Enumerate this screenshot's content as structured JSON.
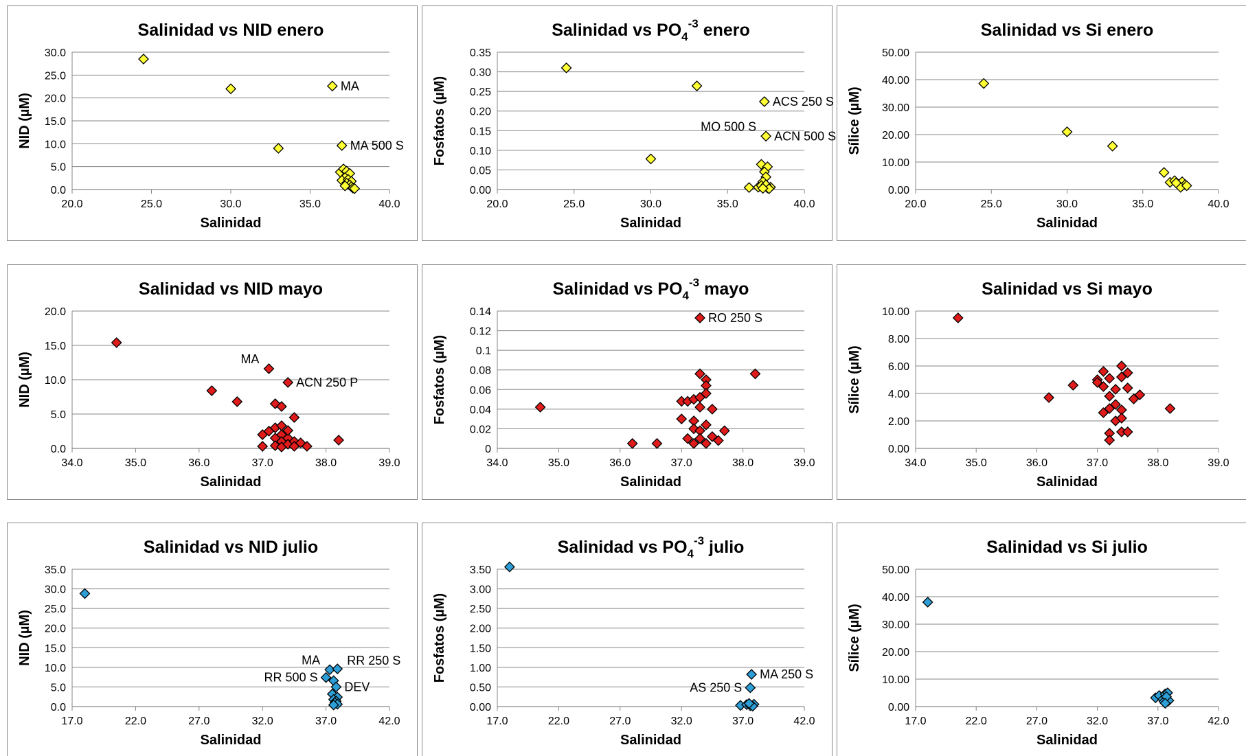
{
  "chart_data": [
    {
      "type": "scatter",
      "title": "Salinidad vs NID enero",
      "xlabel": "Salinidad",
      "ylabel": "NID (µM)",
      "xlim": [
        20.0,
        40.0
      ],
      "ylim": [
        0.0,
        30.0
      ],
      "xticks": [
        "20.0",
        "25.0",
        "30.0",
        "35.0",
        "40.0"
      ],
      "yticks": [
        "0.0",
        "5.0",
        "10.0",
        "15.0",
        "20.0",
        "25.0",
        "30.0"
      ],
      "grid": true,
      "marker_color": "#FFFF33",
      "points": [
        [
          24.5,
          28.5
        ],
        [
          30.0,
          22.0
        ],
        [
          33.0,
          9.0
        ],
        [
          36.4,
          22.6
        ],
        [
          37.0,
          9.6
        ],
        [
          36.9,
          3.8
        ],
        [
          37.1,
          4.5
        ],
        [
          37.3,
          4.0
        ],
        [
          37.5,
          3.5
        ],
        [
          37.2,
          2.6
        ],
        [
          37.0,
          2.0
        ],
        [
          37.4,
          2.2
        ],
        [
          37.6,
          1.8
        ],
        [
          37.3,
          1.4
        ],
        [
          37.5,
          1.0
        ],
        [
          37.6,
          0.6
        ],
        [
          37.7,
          0.3
        ],
        [
          37.2,
          0.8
        ],
        [
          37.8,
          0.2
        ]
      ],
      "annotations": [
        {
          "text": "MA",
          "x": 36.4,
          "y": 22.6,
          "pos": "right"
        },
        {
          "text": "MA 500 S",
          "x": 37.0,
          "y": 9.6,
          "pos": "right"
        }
      ]
    },
    {
      "type": "scatter",
      "title": "Salinidad vs PO4-3 enero",
      "title_main": "Salinidad vs PO",
      "title_sub": "4",
      "title_sup": "-3",
      "title_end": " enero",
      "xlabel": "Salinidad",
      "ylabel": "Fosfatos (µM)",
      "xlim": [
        20.0,
        40.0
      ],
      "ylim": [
        0.0,
        0.35
      ],
      "xticks": [
        "20.0",
        "25.0",
        "30.0",
        "35.0",
        "40.0"
      ],
      "yticks": [
        "0.00",
        "0.05",
        "0.10",
        "0.15",
        "0.20",
        "0.25",
        "0.30",
        "0.35"
      ],
      "grid": true,
      "marker_color": "#FFFF33",
      "points": [
        [
          24.5,
          0.31
        ],
        [
          30.0,
          0.078
        ],
        [
          33.0,
          0.264
        ],
        [
          37.4,
          0.224
        ],
        [
          37.5,
          0.136
        ],
        [
          37.2,
          0.064
        ],
        [
          37.6,
          0.058
        ],
        [
          37.4,
          0.045
        ],
        [
          37.5,
          0.032
        ],
        [
          37.3,
          0.02
        ],
        [
          36.4,
          0.005
        ],
        [
          37.0,
          0.006
        ],
        [
          37.2,
          0.01
        ],
        [
          37.6,
          0.004
        ],
        [
          37.8,
          0.006
        ],
        [
          37.5,
          0.012
        ],
        [
          37.7,
          0.002
        ],
        [
          37.3,
          0.003
        ]
      ],
      "annotations": [
        {
          "text": "ACS 250 S",
          "x": 37.4,
          "y": 0.224,
          "pos": "right"
        },
        {
          "text": "MO 500 S",
          "x": 37.5,
          "y": 0.136,
          "pos": "left-above"
        },
        {
          "text": "ACN 500 S",
          "x": 37.5,
          "y": 0.136,
          "pos": "right"
        }
      ]
    },
    {
      "type": "scatter",
      "title": "Salinidad vs Si enero",
      "xlabel": "Salinidad",
      "ylabel": "Sílice (µM)",
      "xlim": [
        20.0,
        40.0
      ],
      "ylim": [
        0.0,
        50.0
      ],
      "xticks": [
        "20.0",
        "25.0",
        "30.0",
        "35.0",
        "40.0"
      ],
      "yticks": [
        "0.00",
        "10.00",
        "20.00",
        "30.00",
        "40.00",
        "50.00"
      ],
      "grid": true,
      "marker_color": "#FFFF33",
      "points": [
        [
          24.5,
          38.6
        ],
        [
          30.0,
          21.0
        ],
        [
          33.0,
          15.8
        ],
        [
          36.4,
          6.2
        ],
        [
          36.8,
          2.6
        ],
        [
          37.1,
          3.2
        ],
        [
          37.3,
          2.0
        ],
        [
          37.6,
          2.8
        ],
        [
          37.8,
          1.8
        ],
        [
          37.5,
          0.8
        ],
        [
          37.2,
          2.4
        ],
        [
          37.9,
          1.4
        ]
      ],
      "annotations": []
    },
    {
      "type": "scatter",
      "title": "Salinidad vs NID mayo",
      "xlabel": "Salinidad",
      "ylabel": "NID (µM)",
      "xlim": [
        34.0,
        39.0
      ],
      "ylim": [
        0.0,
        20.0
      ],
      "xticks": [
        "34.0",
        "35.0",
        "36.0",
        "37.0",
        "38.0",
        "39.0"
      ],
      "yticks": [
        "0.0",
        "5.0",
        "10.0",
        "15.0",
        "20.0"
      ],
      "grid": true,
      "marker_color": "#E01B1B",
      "points": [
        [
          34.7,
          15.4
        ],
        [
          36.2,
          8.4
        ],
        [
          36.6,
          6.8
        ],
        [
          37.0,
          2.0
        ],
        [
          37.0,
          0.3
        ],
        [
          37.1,
          11.6
        ],
        [
          37.1,
          2.5
        ],
        [
          37.2,
          6.5
        ],
        [
          37.2,
          1.5
        ],
        [
          37.2,
          0.4
        ],
        [
          37.2,
          3.0
        ],
        [
          37.3,
          6.1
        ],
        [
          37.3,
          2.0
        ],
        [
          37.3,
          1.0
        ],
        [
          37.3,
          0.2
        ],
        [
          37.3,
          3.3
        ],
        [
          37.4,
          9.6
        ],
        [
          37.4,
          1.5
        ],
        [
          37.4,
          0.6
        ],
        [
          37.4,
          2.6
        ],
        [
          37.5,
          4.5
        ],
        [
          37.5,
          1.0
        ],
        [
          37.5,
          0.3
        ],
        [
          37.6,
          0.8
        ],
        [
          37.7,
          0.3
        ],
        [
          38.2,
          1.2
        ]
      ],
      "annotations": [
        {
          "text": "MA",
          "x": 37.1,
          "y": 11.6,
          "pos": "left-above"
        },
        {
          "text": "ACN 250 P",
          "x": 37.4,
          "y": 9.6,
          "pos": "right"
        }
      ]
    },
    {
      "type": "scatter",
      "title": "Salinidad vs PO4-3 mayo",
      "title_main": "Salinidad vs PO",
      "title_sub": "4",
      "title_sup": "-3",
      "title_end": " mayo",
      "xlabel": "Salinidad",
      "ylabel": "Fosfatos (µM)",
      "xlim": [
        34.0,
        39.0
      ],
      "ylim": [
        0.0,
        0.14
      ],
      "xticks": [
        "34.0",
        "35.0",
        "36.0",
        "37.0",
        "38.0",
        "39.0"
      ],
      "yticks": [
        "0",
        "0.02",
        "0.04",
        "0.06",
        "0.08",
        "0.1",
        "0.12",
        "0.14"
      ],
      "grid": true,
      "marker_color": "#E01B1B",
      "points": [
        [
          34.7,
          0.042
        ],
        [
          36.2,
          0.005
        ],
        [
          36.6,
          0.005
        ],
        [
          37.0,
          0.048
        ],
        [
          37.0,
          0.03
        ],
        [
          37.1,
          0.048
        ],
        [
          37.1,
          0.01
        ],
        [
          37.2,
          0.05
        ],
        [
          37.2,
          0.028
        ],
        [
          37.2,
          0.02
        ],
        [
          37.2,
          0.005
        ],
        [
          37.3,
          0.133
        ],
        [
          37.3,
          0.076
        ],
        [
          37.3,
          0.052
        ],
        [
          37.3,
          0.042
        ],
        [
          37.3,
          0.018
        ],
        [
          37.3,
          0.01
        ],
        [
          37.4,
          0.07
        ],
        [
          37.4,
          0.064
        ],
        [
          37.4,
          0.056
        ],
        [
          37.4,
          0.024
        ],
        [
          37.4,
          0.005
        ],
        [
          37.5,
          0.04
        ],
        [
          37.5,
          0.012
        ],
        [
          37.6,
          0.008
        ],
        [
          37.7,
          0.018
        ],
        [
          38.2,
          0.076
        ]
      ],
      "annotations": [
        {
          "text": "RO 250 S",
          "x": 37.3,
          "y": 0.133,
          "pos": "right"
        }
      ]
    },
    {
      "type": "scatter",
      "title": "Salinidad vs Si mayo",
      "xlabel": "Salinidad",
      "ylabel": "Sílice (µM)",
      "xlim": [
        34.0,
        39.0
      ],
      "ylim": [
        0.0,
        10.0
      ],
      "xticks": [
        "34.0",
        "35.0",
        "36.0",
        "37.0",
        "38.0",
        "39.0"
      ],
      "yticks": [
        "0.00",
        "2.00",
        "4.00",
        "6.00",
        "8.00",
        "10.00"
      ],
      "grid": true,
      "marker_color": "#E01B1B",
      "points": [
        [
          34.7,
          9.5
        ],
        [
          36.2,
          3.7
        ],
        [
          36.6,
          4.6
        ],
        [
          37.0,
          5.0
        ],
        [
          37.0,
          4.8
        ],
        [
          37.1,
          5.6
        ],
        [
          37.1,
          4.5
        ],
        [
          37.1,
          2.6
        ],
        [
          37.2,
          5.1
        ],
        [
          37.2,
          3.8
        ],
        [
          37.2,
          1.1
        ],
        [
          37.2,
          0.6
        ],
        [
          37.2,
          2.9
        ],
        [
          37.3,
          4.3
        ],
        [
          37.3,
          3.2
        ],
        [
          37.3,
          2.0
        ],
        [
          37.4,
          6.0
        ],
        [
          37.4,
          5.2
        ],
        [
          37.4,
          2.8
        ],
        [
          37.4,
          1.2
        ],
        [
          37.4,
          2.2
        ],
        [
          37.5,
          5.5
        ],
        [
          37.5,
          4.4
        ],
        [
          37.5,
          1.2
        ],
        [
          37.6,
          3.6
        ],
        [
          37.7,
          3.9
        ],
        [
          38.2,
          2.9
        ]
      ],
      "annotations": []
    },
    {
      "type": "scatter",
      "title": "Salinidad vs NID julio",
      "xlabel": "Salinidad",
      "ylabel": "NID (µM)",
      "xlim": [
        17.0,
        42.0
      ],
      "ylim": [
        0.0,
        35.0
      ],
      "xticks": [
        "17.0",
        "22.0",
        "27.0",
        "32.0",
        "37.0",
        "42.0"
      ],
      "yticks": [
        "0.0",
        "5.0",
        "10.0",
        "15.0",
        "20.0",
        "25.0",
        "30.0",
        "35.0"
      ],
      "grid": true,
      "marker_color": "#2E9ED6",
      "points": [
        [
          18.0,
          28.8
        ],
        [
          37.3,
          9.4
        ],
        [
          37.9,
          9.6
        ],
        [
          37.0,
          7.4
        ],
        [
          37.6,
          6.6
        ],
        [
          37.8,
          5.0
        ],
        [
          37.5,
          3.2
        ],
        [
          37.9,
          2.4
        ],
        [
          37.6,
          1.8
        ],
        [
          37.8,
          1.4
        ],
        [
          37.7,
          1.0
        ],
        [
          37.9,
          0.6
        ],
        [
          37.6,
          0.4
        ]
      ],
      "annotations": [
        {
          "text": "MA",
          "x": 37.3,
          "y": 9.4,
          "pos": "left-above"
        },
        {
          "text": "RR 250 S",
          "x": 37.9,
          "y": 9.6,
          "pos": "right-above"
        },
        {
          "text": "RR 500 S",
          "x": 37.0,
          "y": 7.4,
          "pos": "left"
        },
        {
          "text": "DEV",
          "x": 37.8,
          "y": 5.0,
          "pos": "right"
        }
      ]
    },
    {
      "type": "scatter",
      "title": "Salinidad vs PO4-3 julio",
      "title_main": "Salinidad vs PO",
      "title_sub": "4",
      "title_sup": "-3",
      "title_end": " julio",
      "xlabel": "Salinidad",
      "ylabel": "Fosfatos (µM)",
      "xlim": [
        17.0,
        42.0
      ],
      "ylim": [
        0.0,
        3.5
      ],
      "xticks": [
        "17.0",
        "22.0",
        "27.0",
        "32.0",
        "37.0",
        "42.0"
      ],
      "yticks": [
        "0.00",
        "0.50",
        "1.00",
        "1.50",
        "2.00",
        "2.50",
        "3.00",
        "3.50"
      ],
      "grid": true,
      "marker_color": "#2E9ED6",
      "points": [
        [
          18.0,
          3.56
        ],
        [
          37.7,
          0.82
        ],
        [
          37.6,
          0.48
        ],
        [
          36.8,
          0.03
        ],
        [
          37.3,
          0.05
        ],
        [
          37.6,
          0.02
        ],
        [
          37.9,
          0.06
        ],
        [
          37.8,
          0.01
        ],
        [
          37.5,
          0.08
        ]
      ],
      "annotations": [
        {
          "text": "MA 250 S",
          "x": 37.7,
          "y": 0.82,
          "pos": "right"
        },
        {
          "text": "AS 250 S",
          "x": 37.6,
          "y": 0.48,
          "pos": "left"
        }
      ]
    },
    {
      "type": "scatter",
      "title": "Salinidad vs Si julio",
      "xlabel": "Salinidad",
      "ylabel": "Sílice (µM)",
      "xlim": [
        17.0,
        42.0
      ],
      "ylim": [
        0.0,
        50.0
      ],
      "xticks": [
        "17.0",
        "22.0",
        "27.0",
        "32.0",
        "37.0",
        "42.0"
      ],
      "yticks": [
        "0.00",
        "10.00",
        "20.00",
        "30.00",
        "40.00",
        "50.00"
      ],
      "grid": true,
      "marker_color": "#2E9ED6",
      "points": [
        [
          18.0,
          38.0
        ],
        [
          36.8,
          3.2
        ],
        [
          37.1,
          4.0
        ],
        [
          37.4,
          2.6
        ],
        [
          37.6,
          4.6
        ],
        [
          37.8,
          5.0
        ],
        [
          37.5,
          1.8
        ],
        [
          37.9,
          2.2
        ],
        [
          37.7,
          3.6
        ],
        [
          37.6,
          1.2
        ]
      ],
      "annotations": []
    }
  ]
}
